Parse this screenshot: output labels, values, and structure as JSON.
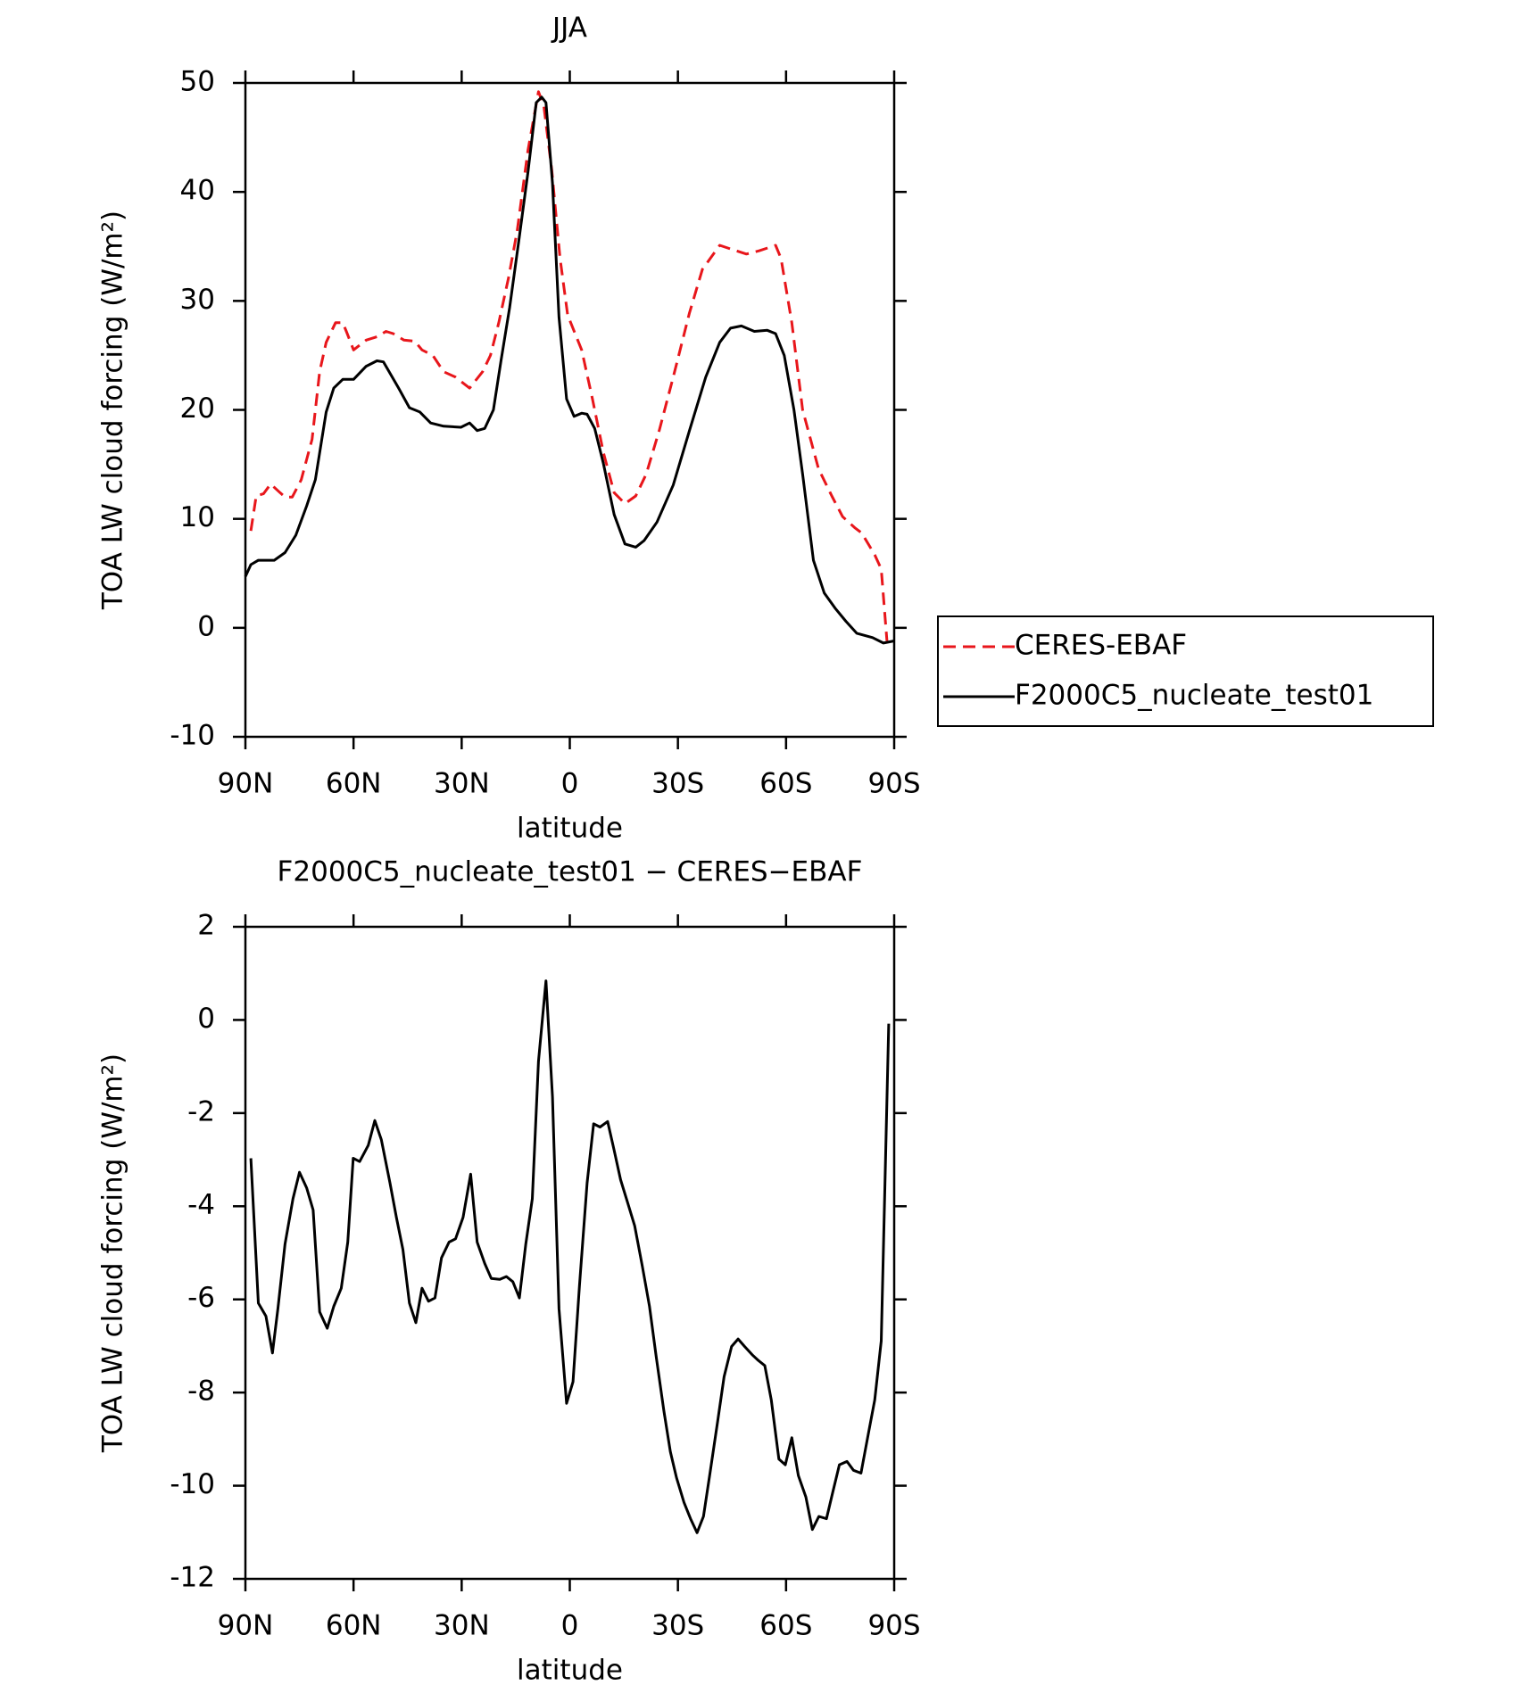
{
  "chart_data": [
    {
      "type": "line",
      "title": "JJA",
      "xlabel": "latitude",
      "ylabel": "TOA LW cloud forcing (W/m²)",
      "xlim": [
        90,
        -90
      ],
      "xticks": [
        {
          "value": 90,
          "label": "90N"
        },
        {
          "value": 60,
          "label": "60N"
        },
        {
          "value": 30,
          "label": "30N"
        },
        0,
        {
          "value": -30,
          "label": "30S"
        },
        {
          "value": -60,
          "label": "60S"
        },
        {
          "value": -90,
          "label": "90S"
        }
      ],
      "ylim": [
        -10,
        50
      ],
      "yticks": [
        -10,
        0,
        10,
        20,
        30,
        40,
        50
      ],
      "legend": "right",
      "series": [
        {
          "name": "CERES-EBAF",
          "color": "#e8161b",
          "dashed": true,
          "x": [
            88.5,
            87,
            85,
            83,
            80.4,
            79,
            77,
            74.5,
            71.5,
            69.4,
            67.6,
            65,
            63,
            62,
            60,
            56.5,
            53.5,
            51,
            49,
            46,
            43,
            41,
            38,
            35,
            31.7,
            27.8,
            24.2,
            22,
            19.7,
            17,
            14.6,
            11.6,
            8.7,
            7.2,
            5,
            2.7,
            0.6,
            -3.3,
            -6.3,
            -9.3,
            -12.3,
            -15.3,
            -18.3,
            -21.2,
            -24.8,
            -28.7,
            -33.2,
            -36.8,
            -41.6,
            -45.2,
            -49,
            -52.6,
            -57.1,
            -58.6,
            -61.6,
            -64.6,
            -69,
            -72.7,
            -75.7,
            -79,
            -81,
            -84.6,
            -86.4,
            -88
          ],
          "values": [
            8.9,
            12.1,
            12.3,
            13.2,
            12.4,
            12,
            12,
            13.6,
            17.3,
            23.5,
            26.2,
            28,
            28,
            27.2,
            25.5,
            26.4,
            26.7,
            27.2,
            27,
            26.4,
            26.3,
            25.5,
            25,
            23.5,
            23,
            22,
            23.5,
            25,
            28,
            32.1,
            36.4,
            43.8,
            49.2,
            47.9,
            42,
            33.9,
            28.7,
            25.5,
            21,
            16.1,
            12.4,
            11.4,
            12.1,
            14.1,
            18.1,
            23,
            28.9,
            32.9,
            35.1,
            34.7,
            34.3,
            34.6,
            35.1,
            33.9,
            28,
            20,
            14.6,
            12.1,
            10.2,
            9.2,
            8.7,
            6.7,
            5.4,
            -1.2
          ]
        },
        {
          "name": "F2000C5_nucleate_test01",
          "color": "#000000",
          "dashed": false,
          "x": [
            90,
            88.5,
            86.4,
            82,
            79,
            76,
            73,
            70.6,
            67.6,
            65.5,
            63,
            60,
            56.5,
            53.5,
            51.7,
            47.5,
            44.5,
            41.6,
            38.6,
            35,
            30.2,
            27.8,
            25.7,
            23.6,
            21.2,
            19.1,
            16.7,
            14,
            11.6,
            9.3,
            7.8,
            6.6,
            4.8,
            3,
            0.9,
            -1.2,
            -3.3,
            -4.8,
            -6.9,
            -9.3,
            -12.3,
            -15.3,
            -18.3,
            -20.6,
            -24.2,
            -28.7,
            -33.2,
            -37.7,
            -41.6,
            -44.6,
            -47.6,
            -51.2,
            -54.8,
            -57.1,
            -59.5,
            -62.2,
            -64.6,
            -67.6,
            -70.6,
            -73.6,
            -76.6,
            -79.6,
            -84,
            -87,
            -90
          ],
          "values": [
            4.7,
            5.8,
            6.2,
            6.2,
            6.9,
            8.5,
            11.2,
            13.6,
            19.8,
            22,
            22.8,
            22.8,
            24,
            24.5,
            24.4,
            22,
            20.2,
            19.8,
            18.8,
            18.5,
            18.4,
            18.8,
            18.1,
            18.3,
            20,
            24.5,
            29.4,
            35.9,
            41.8,
            48.2,
            48.7,
            48.2,
            40.8,
            28.5,
            21,
            19.4,
            19.7,
            19.6,
            18.3,
            15.1,
            10.4,
            7.7,
            7.4,
            8,
            9.7,
            13.1,
            18.1,
            23,
            26.2,
            27.5,
            27.7,
            27.2,
            27.3,
            27,
            25,
            20,
            14.1,
            6.2,
            3.2,
            1.8,
            0.6,
            -0.5,
            -0.9,
            -1.4,
            -1.2
          ]
        }
      ]
    },
    {
      "type": "line",
      "title": "F2000C5_nucleate_test01 − CERES−EBAF",
      "xlabel": "latitude",
      "ylabel": "TOA LW cloud forcing (W/m²)",
      "xlim": [
        90,
        -90
      ],
      "xticks": [
        {
          "value": 90,
          "label": "90N"
        },
        {
          "value": 60,
          "label": "60N"
        },
        {
          "value": 30,
          "label": "30N"
        },
        0,
        {
          "value": -30,
          "label": "30S"
        },
        {
          "value": -60,
          "label": "60S"
        },
        {
          "value": -90,
          "label": "90S"
        }
      ],
      "ylim": [
        -12,
        2
      ],
      "yticks": [
        -12,
        -10,
        -8,
        -6,
        -4,
        -2,
        0,
        2
      ],
      "series": [
        {
          "color": "#000000",
          "dashed": false,
          "x": [
            88.5,
            86.4,
            84.3,
            82.5,
            81,
            79,
            76.8,
            75,
            73,
            71.2,
            69.4,
            67.3,
            65.5,
            63.4,
            61.6,
            60.1,
            58.3,
            55.9,
            54.1,
            52.3,
            49.9,
            48.1,
            46.3,
            44.5,
            42.7,
            41,
            39.2,
            37.4,
            35.6,
            33.5,
            31.7,
            29.6,
            27.5,
            25.7,
            23.6,
            21.8,
            19.4,
            17.6,
            15.8,
            14,
            12.2,
            10.4,
            8.7,
            6.6,
            4.8,
            3,
            0.9,
            -0.9,
            -2.7,
            -4.8,
            -6.6,
            -8.4,
            -10.5,
            -12.3,
            -14.1,
            -16.2,
            -18,
            -20.1,
            -22.1,
            -24,
            -26.1,
            -27.9,
            -29.6,
            -31.7,
            -33.5,
            -35.3,
            -37.1,
            -38.9,
            -41,
            -42.8,
            -44.9,
            -46.7,
            -48.5,
            -50.6,
            -52.3,
            -54.1,
            -55.9,
            -58,
            -59.8,
            -61.6,
            -63.4,
            -65.5,
            -67.3,
            -69.1,
            -71.2,
            -73,
            -74.8,
            -76.9,
            -78.7,
            -80.8,
            -82.9,
            -84.6,
            -86.4,
            -88.5
          ],
          "values": [
            -2.97,
            -6.08,
            -6.36,
            -7.15,
            -6.2,
            -4.81,
            -3.84,
            -3.27,
            -3.61,
            -4.08,
            -6.27,
            -6.62,
            -6.15,
            -5.76,
            -4.77,
            -2.97,
            -3.04,
            -2.69,
            -2.16,
            -2.57,
            -3.5,
            -4.24,
            -4.93,
            -6.08,
            -6.5,
            -5.76,
            -6.04,
            -5.97,
            -5.11,
            -4.77,
            -4.7,
            -4.24,
            -3.31,
            -4.77,
            -5.23,
            -5.55,
            -5.57,
            -5.51,
            -5.62,
            -5.97,
            -4.81,
            -3.84,
            -0.89,
            0.84,
            -1.65,
            -6.2,
            -8.23,
            -7.77,
            -5.69,
            -3.5,
            -2.23,
            -2.3,
            -2.18,
            -2.8,
            -3.43,
            -3.96,
            -4.42,
            -5.28,
            -6.15,
            -7.24,
            -8.39,
            -9.27,
            -9.83,
            -10.36,
            -10.71,
            -11.01,
            -10.66,
            -9.73,
            -8.63,
            -7.66,
            -7.01,
            -6.85,
            -7.01,
            -7.19,
            -7.31,
            -7.42,
            -8.16,
            -9.43,
            -9.55,
            -8.97,
            -9.78,
            -10.24,
            -10.94,
            -10.66,
            -10.71,
            -10.13,
            -9.55,
            -9.48,
            -9.67,
            -9.73,
            -8.86,
            -8.16,
            -6.89,
            -0.08
          ]
        }
      ]
    }
  ]
}
